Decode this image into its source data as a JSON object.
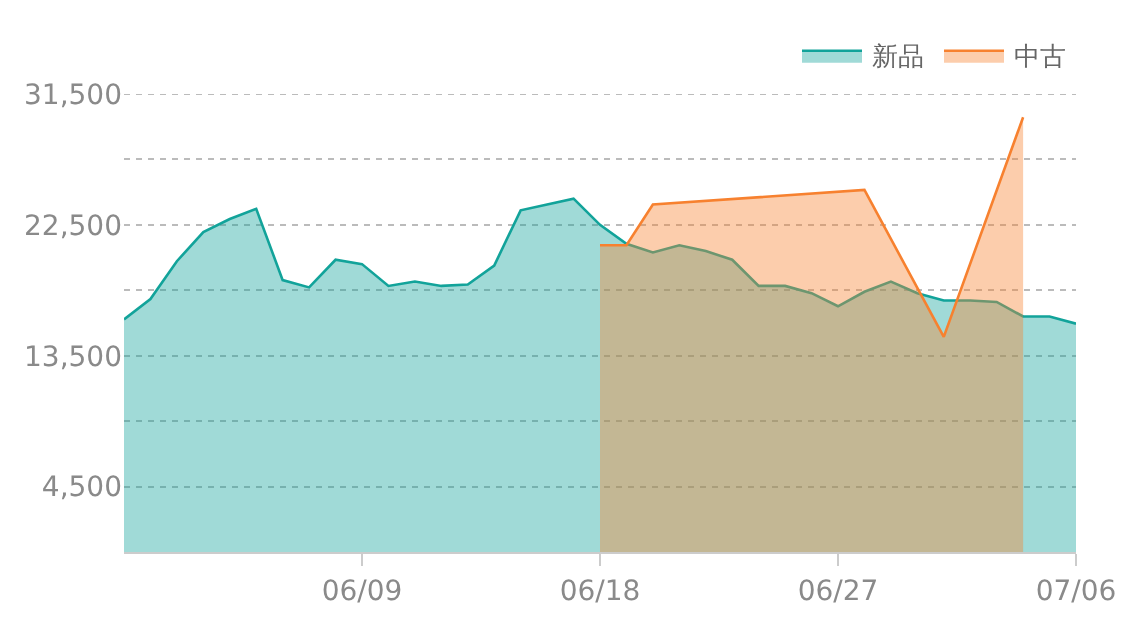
{
  "chart_data": {
    "type": "area",
    "x": [
      "--05-31",
      "--06-01",
      "--06-02",
      "--06-03",
      "--06-04",
      "--06-05",
      "--06-06",
      "--06-07",
      "--06-08",
      "--06-09",
      "--06-10",
      "--06-11",
      "--06-12",
      "--06-13",
      "--06-14",
      "--06-15",
      "--06-16",
      "--06-17",
      "--06-18",
      "--06-19",
      "--06-20",
      "--06-21",
      "--06-22",
      "--06-23",
      "--06-24",
      "--06-25",
      "--06-26",
      "--06-27",
      "--06-28",
      "--06-29",
      "--06-30",
      "--07-01",
      "--07-02",
      "--07-03",
      "--07-04",
      "--07-05",
      "--07-06"
    ],
    "series": [
      {
        "name": "新品",
        "color": "#12a39a",
        "values": [
          16000,
          17400,
          20000,
          22000,
          22900,
          23600,
          18700,
          18200,
          20100,
          19800,
          18300,
          18600,
          18300,
          18400,
          19700,
          23500,
          23900,
          24300,
          22500,
          21200,
          20600,
          21100,
          20700,
          20100,
          18300,
          18300,
          17800,
          16900,
          17900,
          18600,
          17800,
          17300,
          17300,
          17200,
          16200,
          16200,
          15700
        ]
      },
      {
        "name": "中古",
        "color": "#f7812f",
        "x": [
          "--06-18",
          "--06-19",
          "--06-20",
          "--06-28",
          "--07-01",
          "--07-04"
        ],
        "values": [
          21100,
          21100,
          23900,
          24900,
          14800,
          29900
        ]
      }
    ],
    "xlim": [
      "--05-31",
      "--07-06"
    ],
    "xticks": [
      {
        "value": "--06-09",
        "label": "06/09"
      },
      {
        "value": "--06-18",
        "label": "06/18"
      },
      {
        "value": "--06-27",
        "label": "06/27"
      },
      {
        "value": "--07-06",
        "label": "07/06"
      }
    ],
    "ylim": [
      0,
      31500
    ],
    "yticks": [
      {
        "value": 4500,
        "label": "4,500"
      },
      {
        "value": 9000,
        "label": null
      },
      {
        "value": 13500,
        "label": "13,500"
      },
      {
        "value": 18000,
        "label": null
      },
      {
        "value": 22500,
        "label": "22,500"
      },
      {
        "value": 27000,
        "label": null
      },
      {
        "value": 31500,
        "label": "31,500"
      }
    ],
    "grid": "y",
    "legend": "top right",
    "line_style": "solid"
  }
}
